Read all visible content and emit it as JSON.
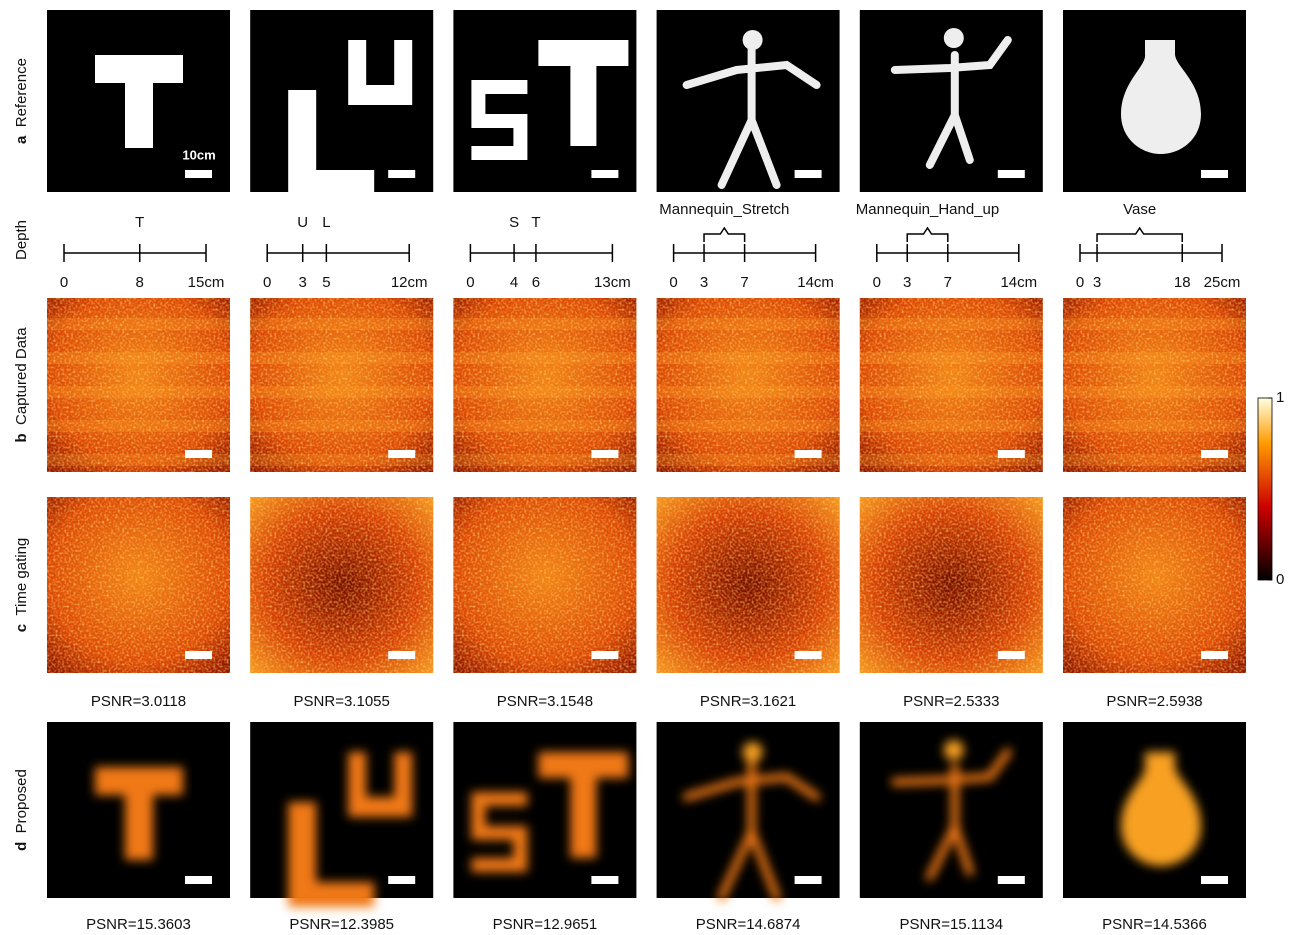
{
  "row_labels": [
    {
      "letter": "a",
      "label": "Reference"
    },
    {
      "label": "Depth"
    },
    {
      "letter": "b",
      "label": "Captured Data"
    },
    {
      "letter": "c",
      "label": "Time gating"
    },
    {
      "letter": "d",
      "label": "Proposed"
    }
  ],
  "scale_bar_label": "10cm",
  "columns": [
    {
      "depth": {
        "lim": [
          0,
          15
        ],
        "ticks": [
          0,
          8,
          {
            "value": 15,
            "label": "15cm"
          }
        ],
        "objects": [
          {
            "label": "T",
            "at": 8
          }
        ]
      },
      "psnr_time_gating": "PSNR=3.0118",
      "psnr_proposed": "PSNR=15.3603"
    },
    {
      "depth": {
        "lim": [
          0,
          12
        ],
        "ticks": [
          0,
          3,
          5,
          {
            "value": 12,
            "label": "12cm"
          }
        ],
        "objects": [
          {
            "label": "U",
            "at": 3
          },
          {
            "label": "L",
            "at": 5
          }
        ]
      },
      "psnr_time_gating": "PSNR=3.1055",
      "psnr_proposed": "PSNR=12.3985"
    },
    {
      "depth": {
        "lim": [
          0,
          13
        ],
        "ticks": [
          0,
          4,
          6,
          {
            "value": 13,
            "label": "13cm"
          }
        ],
        "objects": [
          {
            "label": "S",
            "at": 4
          },
          {
            "label": "T",
            "at": 6
          }
        ]
      },
      "psnr_time_gating": "PSNR=3.1548",
      "psnr_proposed": "PSNR=12.9651"
    },
    {
      "depth": {
        "lim": [
          0,
          14
        ],
        "ticks": [
          0,
          3,
          7,
          {
            "value": 14,
            "label": "14cm"
          }
        ],
        "objects": [
          {
            "label": "Mannequin_Stretch",
            "range": [
              3,
              7
            ]
          }
        ]
      },
      "psnr_time_gating": "PSNR=3.1621",
      "psnr_proposed": "PSNR=14.6874"
    },
    {
      "depth": {
        "lim": [
          0,
          14
        ],
        "ticks": [
          0,
          3,
          7,
          {
            "value": 14,
            "label": "14cm"
          }
        ],
        "objects": [
          {
            "label": "Mannequin_Hand_up",
            "range": [
              3,
              7
            ]
          }
        ]
      },
      "psnr_time_gating": "PSNR=2.5333",
      "psnr_proposed": "PSNR=15.1134"
    },
    {
      "depth": {
        "lim": [
          0,
          25
        ],
        "ticks": [
          0,
          3,
          18,
          {
            "value": 25,
            "label": "25cm"
          }
        ],
        "objects": [
          {
            "label": "Vase",
            "range": [
              3,
              18
            ]
          }
        ]
      },
      "psnr_time_gating": "PSNR=2.5938",
      "psnr_proposed": "PSNR=14.5366"
    }
  ],
  "colorbar": {
    "lim": [
      0,
      1
    ],
    "ticks": [
      0,
      1
    ]
  }
}
